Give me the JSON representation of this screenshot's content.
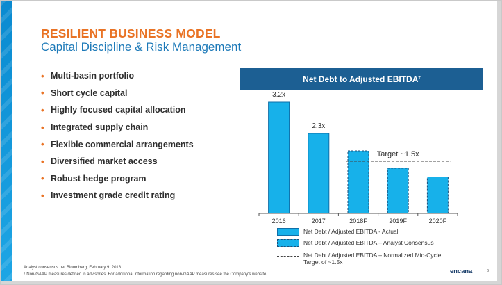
{
  "slide": {
    "title": "RESILIENT BUSINESS MODEL",
    "subtitle": "Capital Discipline & Risk Management",
    "bullets": [
      "Multi-basin portfolio",
      "Short cycle capital",
      "Highly focused capital allocation",
      "Integrated supply chain",
      "Flexible commercial arrangements",
      "Diversified market access",
      "Robust hedge program",
      "Investment grade credit rating"
    ],
    "bullet_marker": "•",
    "footnote_consensus": "Analyst consensus per Bloomberg, February 9, 2018",
    "footnote_nongaap": "ᵀ Non-GAAP measures defined in advisories. For additional information regarding non-GAAP measures see the Company's website.",
    "logo_text": "encana",
    "page_number": "6"
  },
  "chart_data": {
    "type": "bar",
    "title": "Net Debt to Adjusted EBITDA",
    "title_mark": "ᵀ",
    "categories": [
      "2016",
      "2017",
      "2018F",
      "2019F",
      "2020F"
    ],
    "values": [
      3.2,
      2.3,
      1.8,
      1.3,
      1.05
    ],
    "data_labels": [
      "3.2x",
      "2.3x",
      "",
      "",
      ""
    ],
    "bar_kind": [
      "actual",
      "actual",
      "consensus",
      "consensus",
      "consensus"
    ],
    "ylim": [
      0,
      3.6
    ],
    "target": {
      "value": 1.5,
      "label": "Target ~1.5x",
      "from_category": "2018F",
      "to_category": "2020F"
    },
    "grid": false,
    "legend": [
      {
        "kind": "actual",
        "label": "Net Debt / Adjusted EBITDA - Actual"
      },
      {
        "kind": "consensus",
        "label": "Net Debt / Adjusted EBITDA – Analyst Consensus"
      },
      {
        "kind": "target",
        "label": "Net Debt / Adjusted EBITDA – Normalized Mid-Cycle",
        "label2": "Target of ~1.5x"
      }
    ],
    "legend_position": "bottom",
    "colors": {
      "bar_fill": "#17b1ea",
      "actual_border": "#0f6fa8",
      "consensus_border": "#1c4f7a",
      "header_bg": "#1c5f93",
      "accent": "#e97325"
    }
  }
}
